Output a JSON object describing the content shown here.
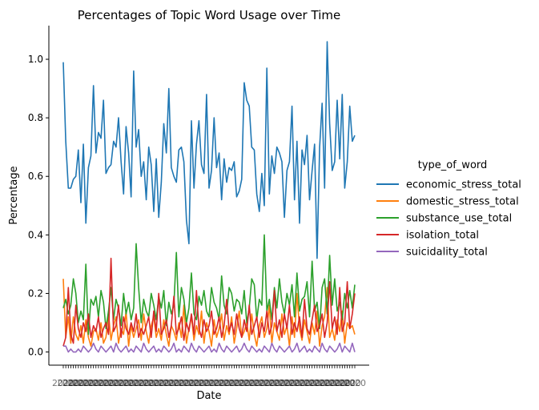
{
  "chart_data": {
    "type": "line",
    "title": "Percentages of Topic Word Usage over Time",
    "xlabel": "Date",
    "ylabel": "Percentage",
    "ylim": [
      -0.045,
      1.115
    ],
    "yticks": [
      0.0,
      0.2,
      0.4,
      0.6,
      0.8,
      1.0
    ],
    "ytick_labels": [
      "0.0",
      "0.2",
      "0.4",
      "0.6",
      "0.8",
      "1.0"
    ],
    "x_count": 117,
    "xtick_note": "dense overlapping date tick labels (unreadable)",
    "legend": {
      "title": "type_of_word",
      "placement": "right"
    },
    "grid": false,
    "series": [
      {
        "name": "economic_stress_total",
        "color": "#1f77b4",
        "values": [
          0.99,
          0.72,
          0.56,
          0.56,
          0.59,
          0.6,
          0.69,
          0.51,
          0.71,
          0.44,
          0.63,
          0.67,
          0.91,
          0.68,
          0.75,
          0.73,
          0.86,
          0.61,
          0.63,
          0.64,
          0.72,
          0.7,
          0.8,
          0.65,
          0.54,
          0.77,
          0.68,
          0.53,
          0.96,
          0.7,
          0.76,
          0.6,
          0.65,
          0.52,
          0.7,
          0.64,
          0.48,
          0.66,
          0.46,
          0.58,
          0.78,
          0.68,
          0.9,
          0.63,
          0.6,
          0.58,
          0.69,
          0.7,
          0.65,
          0.45,
          0.37,
          0.79,
          0.56,
          0.71,
          0.79,
          0.64,
          0.61,
          0.88,
          0.56,
          0.62,
          0.8,
          0.63,
          0.68,
          0.52,
          0.66,
          0.58,
          0.63,
          0.62,
          0.65,
          0.53,
          0.55,
          0.59,
          0.92,
          0.86,
          0.84,
          0.7,
          0.69,
          0.54,
          0.48,
          0.61,
          0.5,
          0.97,
          0.54,
          0.67,
          0.61,
          0.7,
          0.68,
          0.65,
          0.46,
          0.62,
          0.65,
          0.84,
          0.52,
          0.72,
          0.44,
          0.69,
          0.64,
          0.74,
          0.52,
          0.62,
          0.71,
          0.32,
          0.7,
          0.85,
          0.56,
          1.06,
          0.78,
          0.62,
          0.65,
          0.86,
          0.66,
          0.88,
          0.56,
          0.65,
          0.84,
          0.72,
          0.74
        ]
      },
      {
        "name": "domestic_stress_total",
        "color": "#ff7f0e",
        "values": [
          0.25,
          0.05,
          0.12,
          0.03,
          0.12,
          0.06,
          0.04,
          0.09,
          0.03,
          0.11,
          0.05,
          0.02,
          0.07,
          0.08,
          0.04,
          0.1,
          0.03,
          0.05,
          0.13,
          0.04,
          0.09,
          0.12,
          0.03,
          0.08,
          0.06,
          0.14,
          0.02,
          0.09,
          0.05,
          0.08,
          0.11,
          0.04,
          0.13,
          0.07,
          0.03,
          0.09,
          0.12,
          0.05,
          0.08,
          0.04,
          0.11,
          0.06,
          0.02,
          0.09,
          0.07,
          0.04,
          0.1,
          0.05,
          0.16,
          0.03,
          0.08,
          0.12,
          0.04,
          0.09,
          0.06,
          0.14,
          0.03,
          0.1,
          0.07,
          0.02,
          0.11,
          0.05,
          0.08,
          0.13,
          0.04,
          0.09,
          0.06,
          0.12,
          0.03,
          0.08,
          0.14,
          0.05,
          0.07,
          0.1,
          0.04,
          0.13,
          0.06,
          0.02,
          0.09,
          0.12,
          0.05,
          0.08,
          0.16,
          0.03,
          0.1,
          0.07,
          0.04,
          0.13,
          0.06,
          0.09,
          0.02,
          0.12,
          0.05,
          0.2,
          0.08,
          0.04,
          0.11,
          0.07,
          0.03,
          0.1,
          0.06,
          0.14,
          0.02,
          0.09,
          0.12,
          0.22,
          0.05,
          0.08,
          0.04,
          0.11,
          0.07,
          0.14,
          0.03,
          0.1,
          0.08,
          0.09,
          0.06
        ]
      },
      {
        "name": "substance_use_total",
        "color": "#2ca02c",
        "values": [
          0.15,
          0.18,
          0.13,
          0.16,
          0.25,
          0.2,
          0.1,
          0.14,
          0.11,
          0.3,
          0.06,
          0.18,
          0.16,
          0.19,
          0.12,
          0.21,
          0.17,
          0.08,
          0.14,
          0.22,
          0.11,
          0.18,
          0.15,
          0.09,
          0.2,
          0.13,
          0.17,
          0.11,
          0.15,
          0.37,
          0.22,
          0.1,
          0.18,
          0.14,
          0.12,
          0.2,
          0.16,
          0.11,
          0.19,
          0.15,
          0.21,
          0.09,
          0.17,
          0.13,
          0.16,
          0.34,
          0.12,
          0.22,
          0.18,
          0.1,
          0.15,
          0.27,
          0.13,
          0.11,
          0.19,
          0.16,
          0.21,
          0.14,
          0.12,
          0.22,
          0.17,
          0.15,
          0.11,
          0.26,
          0.16,
          0.13,
          0.22,
          0.2,
          0.14,
          0.18,
          0.17,
          0.13,
          0.21,
          0.1,
          0.15,
          0.25,
          0.23,
          0.11,
          0.18,
          0.16,
          0.4,
          0.14,
          0.18,
          0.11,
          0.22,
          0.15,
          0.25,
          0.17,
          0.13,
          0.2,
          0.16,
          0.23,
          0.12,
          0.27,
          0.14,
          0.18,
          0.19,
          0.24,
          0.12,
          0.31,
          0.14,
          0.17,
          0.08,
          0.22,
          0.25,
          0.13,
          0.33,
          0.16,
          0.25,
          0.14,
          0.17,
          0.11,
          0.2,
          0.15,
          0.21,
          0.15,
          0.23
        ]
      },
      {
        "name": "isolation_total",
        "color": "#d62728",
        "values": [
          0.02,
          0.05,
          0.22,
          0.06,
          0.03,
          0.16,
          0.08,
          0.05,
          0.1,
          0.07,
          0.13,
          0.05,
          0.09,
          0.07,
          0.12,
          0.05,
          0.08,
          0.1,
          0.06,
          0.32,
          0.07,
          0.09,
          0.16,
          0.05,
          0.12,
          0.08,
          0.06,
          0.1,
          0.07,
          0.13,
          0.05,
          0.08,
          0.06,
          0.09,
          0.12,
          0.05,
          0.14,
          0.07,
          0.2,
          0.06,
          0.08,
          0.11,
          0.05,
          0.09,
          0.19,
          0.06,
          0.08,
          0.12,
          0.04,
          0.1,
          0.07,
          0.13,
          0.06,
          0.21,
          0.08,
          0.05,
          0.11,
          0.07,
          0.09,
          0.14,
          0.06,
          0.08,
          0.12,
          0.05,
          0.09,
          0.18,
          0.07,
          0.1,
          0.06,
          0.13,
          0.08,
          0.05,
          0.11,
          0.07,
          0.16,
          0.06,
          0.09,
          0.12,
          0.05,
          0.1,
          0.07,
          0.14,
          0.06,
          0.09,
          0.21,
          0.07,
          0.11,
          0.05,
          0.13,
          0.08,
          0.16,
          0.06,
          0.1,
          0.07,
          0.12,
          0.05,
          0.18,
          0.08,
          0.06,
          0.11,
          0.16,
          0.07,
          0.09,
          0.13,
          0.05,
          0.1,
          0.24,
          0.08,
          0.12,
          0.06,
          0.22,
          0.07,
          0.1,
          0.24,
          0.08,
          0.13,
          0.2
        ]
      },
      {
        "name": "suicidality_total",
        "color": "#9467bd",
        "values": [
          0.02,
          0.02,
          0.0,
          0.01,
          0.0,
          0.0,
          0.01,
          0.0,
          0.02,
          0.01,
          0.0,
          0.01,
          0.03,
          0.01,
          0.0,
          0.02,
          0.01,
          0.0,
          0.01,
          0.02,
          0.0,
          0.03,
          0.01,
          0.0,
          0.01,
          0.02,
          0.0,
          0.01,
          0.0,
          0.02,
          0.01,
          0.0,
          0.03,
          0.01,
          0.0,
          0.01,
          0.02,
          0.0,
          0.01,
          0.0,
          0.02,
          0.01,
          0.0,
          0.01,
          0.03,
          0.0,
          0.01,
          0.0,
          0.02,
          0.01,
          0.0,
          0.03,
          0.01,
          0.0,
          0.02,
          0.01,
          0.0,
          0.01,
          0.02,
          0.0,
          0.01,
          0.0,
          0.03,
          0.01,
          0.0,
          0.02,
          0.01,
          0.0,
          0.01,
          0.02,
          0.0,
          0.01,
          0.03,
          0.01,
          0.0,
          0.02,
          0.01,
          0.0,
          0.01,
          0.0,
          0.02,
          0.01,
          0.0,
          0.03,
          0.01,
          0.0,
          0.02,
          0.01,
          0.0,
          0.01,
          0.02,
          0.0,
          0.01,
          0.03,
          0.0,
          0.01,
          0.02,
          0.0,
          0.01,
          0.0,
          0.02,
          0.01,
          0.0,
          0.03,
          0.01,
          0.0,
          0.02,
          0.01,
          0.0,
          0.01,
          0.03,
          0.0,
          0.02,
          0.01,
          0.0,
          0.03,
          0.0
        ]
      }
    ]
  }
}
